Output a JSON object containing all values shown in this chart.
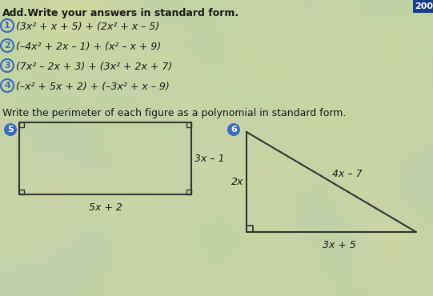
{
  "title_bold": "Add.",
  "title_normal": " Write your answers in standard form.",
  "problems": [
    {
      "num": "1",
      "text": "(3x² + x + 5) + (2x² + x – 5)"
    },
    {
      "num": "2",
      "text": "(–4x² + 2x – 1) + (x² – x + 9)"
    },
    {
      "num": "3",
      "text": "(7x² – 2x + 3) + (3x² + 2x + 7)"
    },
    {
      "num": "4",
      "text": "(–x² + 5x + 2) + (–3x² + x – 9)"
    }
  ],
  "perimeter_title": "Write the perimeter of each figure as a polynomial in standard form.",
  "fig5_label": "5",
  "fig6_label": "6",
  "rect_side_label": "3x – 1",
  "rect_bottom_label": "5x + 2",
  "tri_vert_label": "2x",
  "tri_hyp_label": "4x – 7",
  "tri_bottom_label": "3x + 5",
  "bg_color": "#c8cfa8",
  "text_color": "#1a1a1a",
  "circle_outline_color": "#3a6abf",
  "circle_fill_color": "#3a6abf",
  "page_num": "200",
  "page_badge_color": "#1a3a8a"
}
